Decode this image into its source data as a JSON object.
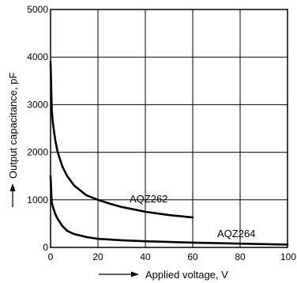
{
  "chart_data": {
    "type": "line",
    "xlabel": "Applied voltage, V",
    "ylabel": "Output capacitance, pF",
    "xlim": [
      0,
      100
    ],
    "ylim": [
      0,
      5000
    ],
    "x_ticks": [
      0,
      20,
      40,
      60,
      80,
      100
    ],
    "y_ticks": [
      0,
      1000,
      2000,
      3000,
      4000,
      5000
    ],
    "x_tick_labels": [
      "0",
      "20",
      "40",
      "60",
      "80",
      "100"
    ],
    "y_tick_labels": [
      "0",
      "1000",
      "2000",
      "3000",
      "4000",
      "5000"
    ],
    "grid": true,
    "series": [
      {
        "name": "AQZ262",
        "x": [
          0,
          0.5,
          1,
          2,
          3,
          5,
          7,
          10,
          15,
          20,
          25,
          30,
          40,
          50,
          60
        ],
        "y": [
          3900,
          2900,
          2600,
          2250,
          2000,
          1700,
          1500,
          1300,
          1100,
          1000,
          920,
          850,
          750,
          680,
          630
        ]
      },
      {
        "name": "AQZ264",
        "x": [
          0,
          0.5,
          1,
          2,
          3,
          5,
          7,
          10,
          15,
          20,
          30,
          40,
          50,
          60,
          70,
          80,
          90,
          100
        ],
        "y": [
          1500,
          950,
          850,
          700,
          600,
          450,
          350,
          280,
          220,
          180,
          150,
          130,
          115,
          100,
          90,
          80,
          70,
          60
        ]
      }
    ]
  }
}
